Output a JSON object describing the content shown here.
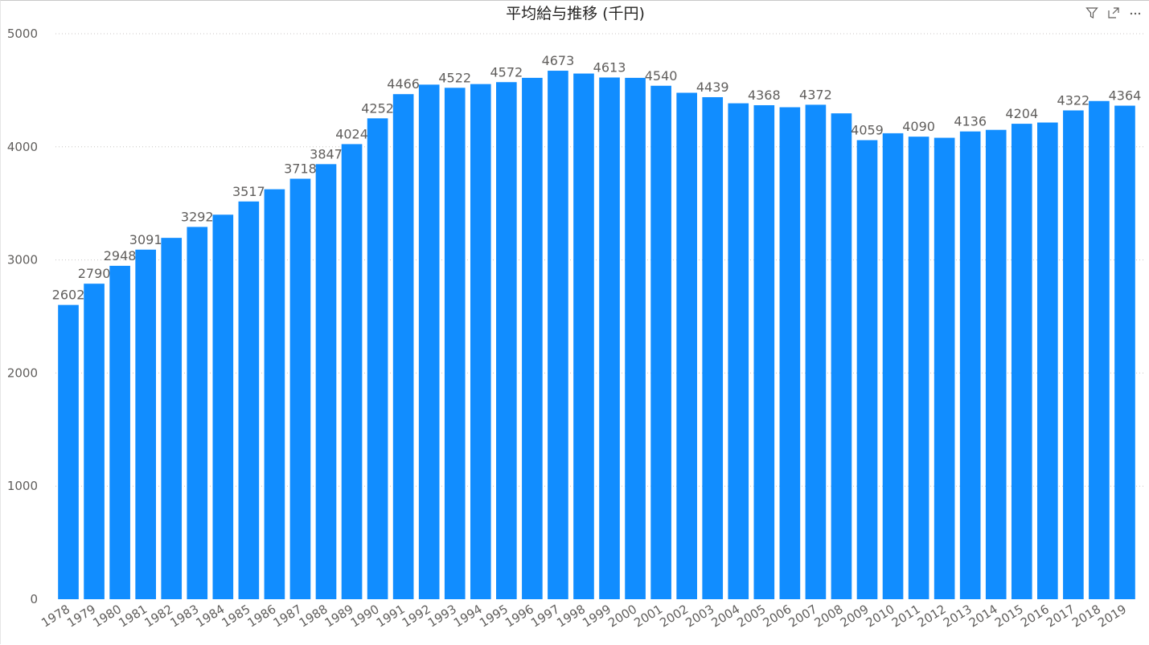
{
  "header": {
    "icons": [
      "filter-icon",
      "focus-mode-icon",
      "more-options-icon"
    ]
  },
  "chart_data": {
    "type": "bar",
    "title": "平均給与推移 (千円)",
    "xlabel": "",
    "ylabel": "",
    "ylim": [
      0,
      5000
    ],
    "yticks": [
      0,
      1000,
      2000,
      3000,
      4000,
      5000
    ],
    "grid": true,
    "bar_color": "#118DFF",
    "categories": [
      "1978",
      "1979",
      "1980",
      "1981",
      "1982",
      "1983",
      "1984",
      "1985",
      "1986",
      "1987",
      "1988",
      "1989",
      "1990",
      "1991",
      "1992",
      "1993",
      "1994",
      "1995",
      "1996",
      "1997",
      "1998",
      "1999",
      "2000",
      "2001",
      "2002",
      "2003",
      "2004",
      "2005",
      "2006",
      "2007",
      "2008",
      "2009",
      "2010",
      "2011",
      "2012",
      "2013",
      "2014",
      "2015",
      "2016",
      "2017",
      "2018",
      "2019"
    ],
    "values": [
      2602,
      2790,
      2948,
      3091,
      3195,
      3292,
      3400,
      3517,
      3625,
      3718,
      3847,
      4024,
      4252,
      4466,
      4550,
      4522,
      4555,
      4572,
      4610,
      4673,
      4648,
      4613,
      4610,
      4540,
      4478,
      4439,
      4385,
      4368,
      4350,
      4372,
      4296,
      4059,
      4120,
      4090,
      4080,
      4136,
      4150,
      4204,
      4215,
      4322,
      4405,
      4364
    ],
    "data_labels": {
      "1978": "2602",
      "1979": "2790",
      "1980": "2948",
      "1981": "3091",
      "1983": "3292",
      "1985": "3517",
      "1987": "3718",
      "1988": "3847",
      "1989": "4024",
      "1990": "4252",
      "1991": "4466",
      "1993": "4522",
      "1995": "4572",
      "1997": "4673",
      "1999": "4613",
      "2001": "4540",
      "2003": "4439",
      "2005": "4368",
      "2007": "4372",
      "2009": "4059",
      "2011": "4090",
      "2013": "4136",
      "2015": "4204",
      "2017": "4322",
      "2019": "4364"
    }
  }
}
